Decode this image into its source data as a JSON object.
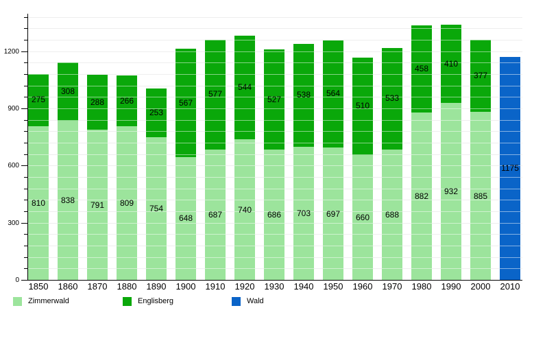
{
  "chart_data": {
    "type": "bar",
    "stacked": true,
    "title": "",
    "xlabel": "",
    "ylabel": "",
    "categories": [
      "1850",
      "1860",
      "1870",
      "1880",
      "1890",
      "1900",
      "1910",
      "1920",
      "1930",
      "1940",
      "1950",
      "1960",
      "1970",
      "1980",
      "1990",
      "2000",
      "2010"
    ],
    "series": [
      {
        "name": "Zimmerwald",
        "color": "#9ce49c",
        "values": [
          810,
          838,
          791,
          809,
          754,
          648,
          687,
          740,
          686,
          703,
          697,
          660,
          688,
          882,
          932,
          885,
          null
        ]
      },
      {
        "name": "Englisberg",
        "color": "#0aa80a",
        "values": [
          275,
          308,
          288,
          266,
          253,
          567,
          577,
          544,
          527,
          538,
          564,
          510,
          533,
          458,
          410,
          377,
          null
        ]
      },
      {
        "name": "Wald",
        "color": "#0a64c8",
        "values": [
          null,
          null,
          null,
          null,
          null,
          null,
          null,
          null,
          null,
          null,
          null,
          null,
          null,
          null,
          null,
          null,
          1175
        ]
      }
    ],
    "totals": [
      1085,
      1146,
      1079,
      1075,
      1007,
      1215,
      1264,
      1284,
      1213,
      1241,
      1261,
      1170,
      1221,
      1340,
      1342,
      1262,
      1175
    ],
    "ylim": [
      0,
      1400
    ],
    "yticks": [
      0,
      300,
      600,
      900,
      1200
    ],
    "minor_tick_step": 60,
    "grid": true,
    "gridline_color": "#dcdcdc",
    "gridline_over_bar_color": "rgba(255,255,255,0.5)",
    "axis_color": "#000000",
    "label_color": "#000000",
    "value_labels": true,
    "legend_position": "bottom",
    "legend": [
      {
        "label": "Zimmerwald",
        "color": "#9ce49c"
      },
      {
        "label": "Englisberg",
        "color": "#0aa80a"
      },
      {
        "label": "Wald",
        "color": "#0a64c8"
      }
    ]
  }
}
